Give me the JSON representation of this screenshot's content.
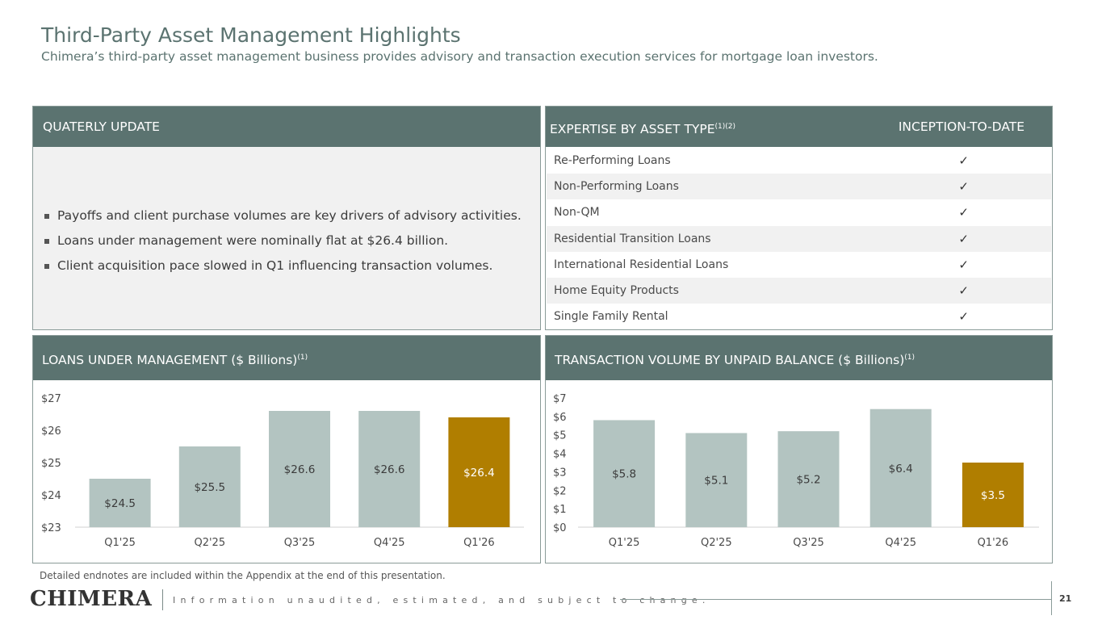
{
  "header": {
    "title": "Third-Party Asset Management Highlights",
    "subtitle": "Chimera’s third-party asset management business provides advisory and transaction execution services for mortgage loan investors."
  },
  "quarterly_update": {
    "heading": "QUATERLY UPDATE",
    "bullets": [
      "Payoffs and client purchase volumes are key drivers of advisory activities.",
      "Loans under management were nominally flat at $26.4 billion.",
      "Client acquisition pace slowed in Q1 influencing transaction volumes."
    ]
  },
  "expertise": {
    "heading": "EXPERTISE BY ASSET TYPE",
    "heading_sup": "(1)(2)",
    "column_heading": "INCEPTION-TO-DATE",
    "check_symbol": "✓",
    "rows": [
      "Re-Performing Loans",
      "Non-Performing Loans",
      "Non-QM",
      "Residential Transition Loans",
      "International Residential Loans",
      "Home Equity Products",
      "Single Family Rental"
    ]
  },
  "loans_panel": {
    "heading": "LOANS UNDER MANAGEMENT ($ Billions)",
    "heading_sup": "(1)"
  },
  "volume_panel": {
    "heading": "TRANSACTION VOLUME BY UNPAID BALANCE ($ Billions)",
    "heading_sup": "(1)"
  },
  "chart_data": [
    {
      "type": "bar",
      "categories": [
        "Q1'25",
        "Q2'25",
        "Q3'25",
        "Q4'25",
        "Q1'26"
      ],
      "values": [
        24.5,
        25.5,
        26.6,
        26.6,
        26.4
      ],
      "data_labels": [
        "$24.5",
        "$25.5",
        "$26.6",
        "$26.6",
        "$26.4"
      ],
      "ylim": [
        23,
        27
      ],
      "yticks": [
        23,
        24,
        25,
        26,
        27
      ],
      "ytick_labels": [
        "$23",
        "$24",
        "$25",
        "$26",
        "$27"
      ],
      "highlight_index": 4,
      "colors": {
        "bar": "#b3c4c1",
        "highlight": "#b07e00",
        "label": "#3b3b3b",
        "highlight_label": "#ffffff"
      }
    },
    {
      "type": "bar",
      "categories": [
        "Q1'25",
        "Q2'25",
        "Q3'25",
        "Q4'25",
        "Q1'26"
      ],
      "values": [
        5.8,
        5.1,
        5.2,
        6.4,
        3.5
      ],
      "data_labels": [
        "$5.8",
        "$5.1",
        "$5.2",
        "$6.4",
        "$3.5"
      ],
      "ylim": [
        0,
        7
      ],
      "yticks": [
        0,
        1,
        2,
        3,
        4,
        5,
        6,
        7
      ],
      "ytick_labels": [
        "$0",
        "$1",
        "$2",
        "$3",
        "$4",
        "$5",
        "$6",
        "$7"
      ],
      "highlight_index": 4,
      "colors": {
        "bar": "#b3c4c1",
        "highlight": "#b07e00",
        "label": "#3b3b3b",
        "highlight_label": "#ffffff"
      }
    }
  ],
  "footer": {
    "footnote": "Detailed endnotes are included within the Appendix at the end of this presentation.",
    "logo_text": "CHIMERA",
    "disclaimer": "Information unaudited, estimated, and subject to change.",
    "page_number": "21"
  }
}
